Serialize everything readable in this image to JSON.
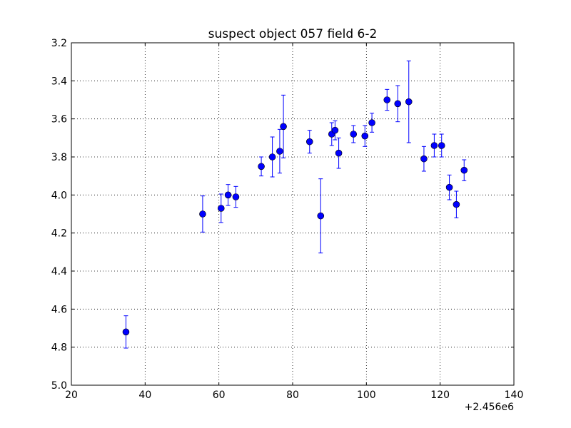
{
  "chart_data": {
    "type": "scatter",
    "title": "suspect object 057 field 6-2",
    "xlabel": "",
    "ylabel": "",
    "x_offset_label": "+2.456e6",
    "xlim": [
      20,
      140
    ],
    "ylim": [
      3.2,
      5.0
    ],
    "y_inverted": true,
    "grid": true,
    "marker_color": "#0000ff",
    "xticks": [
      "20",
      "40",
      "60",
      "80",
      "100",
      "120",
      "140"
    ],
    "yticks": [
      "3.2",
      "3.4",
      "3.6",
      "3.8",
      "4.0",
      "4.2",
      "4.4",
      "4.6",
      "4.8",
      "5.0"
    ],
    "points": [
      {
        "x": 34.8,
        "y": 4.72,
        "err": 0.085
      },
      {
        "x": 55.6,
        "y": 4.1,
        "err": 0.095
      },
      {
        "x": 60.6,
        "y": 4.07,
        "err": 0.075
      },
      {
        "x": 62.5,
        "y": 4.0,
        "err": 0.055
      },
      {
        "x": 64.6,
        "y": 4.01,
        "err": 0.055
      },
      {
        "x": 71.5,
        "y": 3.85,
        "err": 0.05
      },
      {
        "x": 74.5,
        "y": 3.8,
        "err": 0.105
      },
      {
        "x": 76.5,
        "y": 3.77,
        "err": 0.115
      },
      {
        "x": 77.5,
        "y": 3.64,
        "err": 0.165
      },
      {
        "x": 84.6,
        "y": 3.72,
        "err": 0.06
      },
      {
        "x": 87.6,
        "y": 4.11,
        "err": 0.195
      },
      {
        "x": 90.6,
        "y": 3.68,
        "err": 0.06
      },
      {
        "x": 91.5,
        "y": 3.66,
        "err": 0.05
      },
      {
        "x": 92.5,
        "y": 3.78,
        "err": 0.08
      },
      {
        "x": 96.5,
        "y": 3.68,
        "err": 0.045
      },
      {
        "x": 99.6,
        "y": 3.69,
        "err": 0.055
      },
      {
        "x": 101.5,
        "y": 3.62,
        "err": 0.05
      },
      {
        "x": 105.6,
        "y": 3.5,
        "err": 0.055
      },
      {
        "x": 108.5,
        "y": 3.52,
        "err": 0.095
      },
      {
        "x": 111.5,
        "y": 3.51,
        "err": 0.215
      },
      {
        "x": 115.6,
        "y": 3.81,
        "err": 0.065
      },
      {
        "x": 118.4,
        "y": 3.74,
        "err": 0.06
      },
      {
        "x": 120.4,
        "y": 3.74,
        "err": 0.06
      },
      {
        "x": 122.5,
        "y": 3.96,
        "err": 0.065
      },
      {
        "x": 124.4,
        "y": 4.05,
        "err": 0.07
      },
      {
        "x": 126.5,
        "y": 3.87,
        "err": 0.055
      }
    ]
  }
}
